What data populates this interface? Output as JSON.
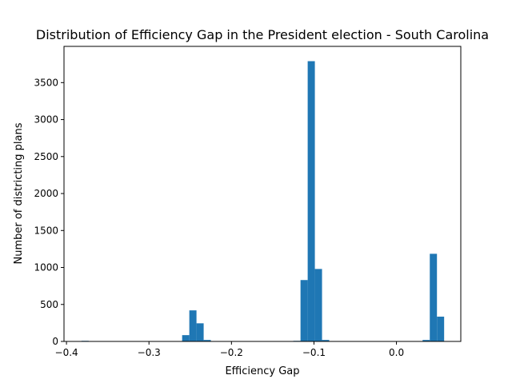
{
  "chart_data": {
    "type": "bar",
    "title": "Distribution of Efficiency Gap in the President election - South Carolina",
    "xlabel": "Efficiency Gap",
    "ylabel": "Number of districting plans",
    "xlim": [
      -0.403,
      0.078
    ],
    "ylim": [
      0,
      3990
    ],
    "xticks": [
      -0.4,
      -0.3,
      -0.2,
      -0.1,
      0.0
    ],
    "xtick_labels": [
      "−0.4",
      "−0.3",
      "−0.2",
      "−0.1",
      "0.0"
    ],
    "yticks": [
      0,
      500,
      1000,
      1500,
      2000,
      2500,
      3000,
      3500
    ],
    "ytick_labels": [
      "0",
      "500",
      "1000",
      "1500",
      "2000",
      "2500",
      "3000",
      "3500"
    ],
    "bin_width": 0.0087,
    "bins": [
      {
        "x0": -0.3818,
        "x1": -0.3731,
        "count": 8
      },
      {
        "x0": -0.2598,
        "x1": -0.2511,
        "count": 85
      },
      {
        "x0": -0.2511,
        "x1": -0.2424,
        "count": 420
      },
      {
        "x0": -0.2424,
        "x1": -0.2337,
        "count": 245
      },
      {
        "x0": -0.2337,
        "x1": -0.225,
        "count": 20
      },
      {
        "x0": -0.125,
        "x1": -0.1163,
        "count": 8
      },
      {
        "x0": -0.1163,
        "x1": -0.1076,
        "count": 830
      },
      {
        "x0": -0.1076,
        "x1": -0.0989,
        "count": 3790
      },
      {
        "x0": -0.0989,
        "x1": -0.0902,
        "count": 980
      },
      {
        "x0": -0.0902,
        "x1": -0.0815,
        "count": 20
      },
      {
        "x0": 0.0317,
        "x1": 0.0404,
        "count": 20
      },
      {
        "x0": 0.0404,
        "x1": 0.0491,
        "count": 1185
      },
      {
        "x0": 0.0491,
        "x1": 0.0578,
        "count": 335
      }
    ],
    "bar_color": "#1f77b4",
    "grid": false,
    "legend": "none"
  }
}
